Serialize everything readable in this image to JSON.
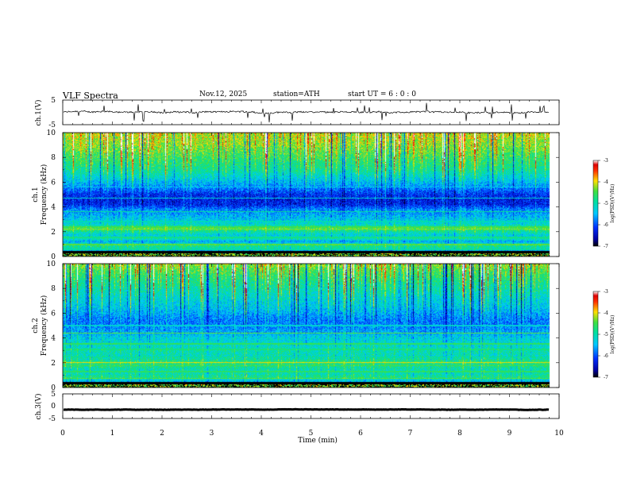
{
  "header": {
    "title": "VLF  Spectra",
    "date": "Nov.12, 2025",
    "station": "station=ATH",
    "start": "start  UT  =    6  : 0   : 0"
  },
  "chart_data": [
    {
      "id": "ch1-waveform",
      "type": "line",
      "ylabel": "ch.1(V)",
      "ylim": [
        -5,
        5
      ],
      "yticks": [
        "5",
        "-5"
      ],
      "baseline_v": 0.1,
      "noise_v": 0.6,
      "color": "#000000"
    },
    {
      "id": "ch1-spectrogram",
      "type": "heatmap",
      "ylabel": "ch.1\nFrequency  (kHz)",
      "ylim": [
        0,
        10
      ],
      "yticks": [
        "0",
        "2",
        "4",
        "6",
        "8",
        "10"
      ],
      "xlim": [
        0,
        10
      ],
      "data_end_min": 9.8,
      "colorbar": {
        "label": "log(PSD)(V²/Hz)",
        "range": [
          -7,
          -3
        ],
        "ticks": [
          "-3",
          "-4",
          "-5",
          "-6",
          "-7"
        ]
      },
      "profile": [
        [
          0.0,
          -3.8
        ],
        [
          0.25,
          -4.3
        ],
        [
          0.3,
          -6.6
        ],
        [
          0.5,
          -5.2
        ],
        [
          0.8,
          -4.8
        ],
        [
          1.2,
          -5.6
        ],
        [
          1.4,
          -5.0
        ],
        [
          1.7,
          -5.3
        ],
        [
          2.0,
          -4.9
        ],
        [
          2.2,
          -4.5
        ],
        [
          2.6,
          -5.2
        ],
        [
          3.0,
          -5.4
        ],
        [
          3.4,
          -5.6
        ],
        [
          3.8,
          -5.8
        ],
        [
          4.2,
          -6.3
        ],
        [
          4.6,
          -6.3
        ],
        [
          5.0,
          -6.2
        ],
        [
          5.4,
          -5.9
        ],
        [
          5.8,
          -5.6
        ],
        [
          6.3,
          -5.3
        ],
        [
          7.0,
          -4.9
        ],
        [
          8.0,
          -4.6
        ],
        [
          9.0,
          -4.3
        ],
        [
          10.0,
          -4.1
        ]
      ],
      "lines_khz": [
        [
          2.2,
          -4.3
        ],
        [
          2.35,
          -4.5
        ],
        [
          1.5,
          -4.8
        ],
        [
          0.95,
          -4.4
        ],
        [
          0.55,
          -5.0
        ],
        [
          3.6,
          -4.9
        ],
        [
          2.8,
          -5.1
        ],
        [
          4.7,
          -5.2
        ],
        [
          5.6,
          -5.4
        ],
        [
          1.15,
          -6.0
        ]
      ]
    },
    {
      "id": "ch2-spectrogram",
      "type": "heatmap",
      "ylabel": "ch.2\nFrequency  (kHz)",
      "ylim": [
        0,
        10
      ],
      "yticks": [
        "0",
        "2",
        "4",
        "6",
        "8",
        "10"
      ],
      "xlim": [
        0,
        10
      ],
      "data_end_min": 9.8,
      "colorbar": {
        "label": "log(PSD)(V²/Hz)",
        "range": [
          -7,
          -3
        ],
        "ticks": [
          "-3",
          "-4",
          "-5",
          "-6",
          "-7"
        ]
      },
      "profile": [
        [
          0.0,
          -4.3
        ],
        [
          0.3,
          -4.6
        ],
        [
          0.45,
          -5.5
        ],
        [
          0.8,
          -4.8
        ],
        [
          1.2,
          -5.1
        ],
        [
          1.6,
          -4.9
        ],
        [
          2.0,
          -4.7
        ],
        [
          2.5,
          -5.1
        ],
        [
          3.0,
          -5.0
        ],
        [
          3.5,
          -5.2
        ],
        [
          4.0,
          -5.3
        ],
        [
          4.5,
          -5.6
        ],
        [
          5.0,
          -5.8
        ],
        [
          5.5,
          -5.8
        ],
        [
          6.0,
          -5.6
        ],
        [
          6.5,
          -5.4
        ],
        [
          7.0,
          -5.3
        ],
        [
          8.0,
          -5.0
        ],
        [
          9.0,
          -4.7
        ],
        [
          10.0,
          -4.3
        ]
      ],
      "lines_khz": [
        [
          2.0,
          -4.0
        ],
        [
          1.75,
          -4.5
        ],
        [
          1.25,
          -4.6
        ],
        [
          0.7,
          -4.4
        ],
        [
          0.3,
          -4.2
        ],
        [
          3.5,
          -4.6
        ],
        [
          3.05,
          -4.8
        ],
        [
          4.4,
          -4.4
        ],
        [
          5.0,
          -5.2
        ],
        [
          2.45,
          -4.9
        ]
      ]
    },
    {
      "id": "ch3-waveform",
      "type": "line",
      "ylabel": "ch.3(V)",
      "ylim": [
        -5,
        5
      ],
      "yticks": [
        "5",
        "0",
        "-5"
      ],
      "baseline_v": -1.4,
      "noise_v": 0.12,
      "color": "#000000"
    }
  ],
  "time_axis": {
    "xlabel": "Time  (min)",
    "xlim": [
      0,
      10
    ],
    "ticks": [
      "0",
      "1",
      "2",
      "3",
      "4",
      "5",
      "6",
      "7",
      "8",
      "9",
      "10"
    ]
  }
}
